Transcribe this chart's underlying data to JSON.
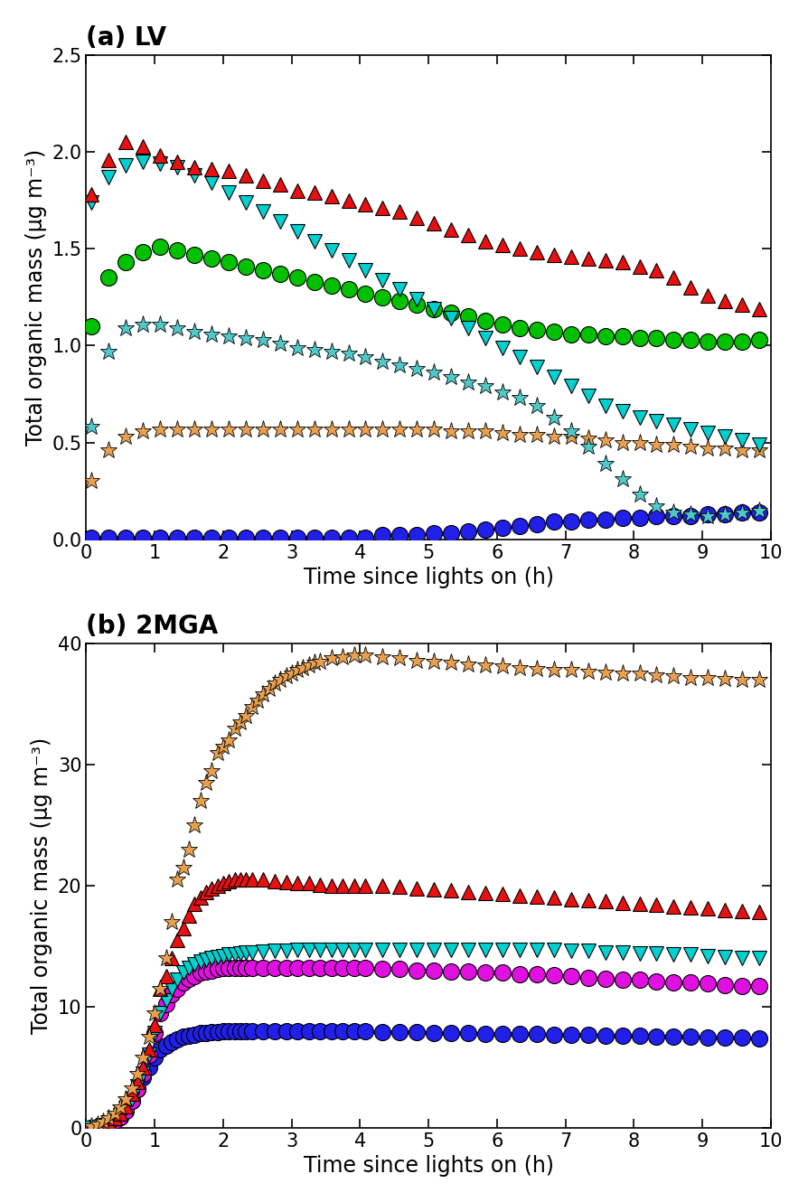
{
  "panel_a_title": "(a) LV",
  "panel_b_title": "(b) 2MGA",
  "xlabel": "Time since lights on (h)",
  "ylabel": "Total organic mass (μg m⁻³)",
  "panel_a_ylim": [
    0,
    2.5
  ],
  "panel_b_ylim": [
    0,
    40
  ],
  "xlim": [
    0,
    10
  ],
  "panel_a": {
    "red_triangles_up": {
      "x": [
        0.08,
        0.33,
        0.58,
        0.83,
        1.08,
        1.33,
        1.58,
        1.83,
        2.08,
        2.33,
        2.58,
        2.83,
        3.08,
        3.33,
        3.58,
        3.83,
        4.08,
        4.33,
        4.58,
        4.83,
        5.08,
        5.33,
        5.58,
        5.83,
        6.08,
        6.33,
        6.58,
        6.83,
        7.08,
        7.33,
        7.58,
        7.83,
        8.08,
        8.33,
        8.58,
        8.83,
        9.08,
        9.33,
        9.58,
        9.83
      ],
      "y": [
        1.78,
        1.96,
        2.05,
        2.03,
        1.98,
        1.95,
        1.92,
        1.91,
        1.9,
        1.88,
        1.85,
        1.83,
        1.8,
        1.79,
        1.77,
        1.75,
        1.73,
        1.71,
        1.69,
        1.66,
        1.63,
        1.6,
        1.57,
        1.54,
        1.52,
        1.5,
        1.48,
        1.47,
        1.46,
        1.45,
        1.44,
        1.43,
        1.41,
        1.39,
        1.35,
        1.3,
        1.26,
        1.23,
        1.21,
        1.19
      ],
      "color": "#e81010",
      "marker": "^",
      "ms": 11,
      "edge": "black",
      "ew": 0.8
    },
    "cyan_triangles_down": {
      "x": [
        0.08,
        0.33,
        0.58,
        0.83,
        1.08,
        1.33,
        1.58,
        1.83,
        2.08,
        2.33,
        2.58,
        2.83,
        3.08,
        3.33,
        3.58,
        3.83,
        4.08,
        4.33,
        4.58,
        4.83,
        5.08,
        5.33,
        5.58,
        5.83,
        6.08,
        6.33,
        6.58,
        6.83,
        7.08,
        7.33,
        7.58,
        7.83,
        8.08,
        8.33,
        8.58,
        8.83,
        9.08,
        9.33,
        9.58,
        9.83
      ],
      "y": [
        1.74,
        1.87,
        1.93,
        1.95,
        1.94,
        1.92,
        1.88,
        1.84,
        1.79,
        1.74,
        1.69,
        1.64,
        1.59,
        1.54,
        1.49,
        1.44,
        1.39,
        1.34,
        1.29,
        1.24,
        1.19,
        1.14,
        1.09,
        1.04,
        0.99,
        0.94,
        0.89,
        0.84,
        0.79,
        0.74,
        0.69,
        0.66,
        0.63,
        0.61,
        0.59,
        0.57,
        0.55,
        0.53,
        0.51,
        0.49
      ],
      "color": "#00d0d0",
      "marker": "v",
      "ms": 11,
      "edge": "black",
      "ew": 0.8
    },
    "green_circles": {
      "x": [
        0.08,
        0.33,
        0.58,
        0.83,
        1.08,
        1.33,
        1.58,
        1.83,
        2.08,
        2.33,
        2.58,
        2.83,
        3.08,
        3.33,
        3.58,
        3.83,
        4.08,
        4.33,
        4.58,
        4.83,
        5.08,
        5.33,
        5.58,
        5.83,
        6.08,
        6.33,
        6.58,
        6.83,
        7.08,
        7.33,
        7.58,
        7.83,
        8.08,
        8.33,
        8.58,
        8.83,
        9.08,
        9.33,
        9.58,
        9.83
      ],
      "y": [
        1.1,
        1.35,
        1.43,
        1.48,
        1.51,
        1.49,
        1.47,
        1.45,
        1.43,
        1.41,
        1.39,
        1.37,
        1.35,
        1.33,
        1.31,
        1.29,
        1.27,
        1.25,
        1.23,
        1.21,
        1.19,
        1.17,
        1.15,
        1.13,
        1.11,
        1.09,
        1.08,
        1.07,
        1.06,
        1.06,
        1.05,
        1.05,
        1.04,
        1.04,
        1.03,
        1.03,
        1.02,
        1.02,
        1.02,
        1.03
      ],
      "color": "#00c000",
      "marker": "o",
      "ms": 13,
      "edge": "black",
      "ew": 0.8
    },
    "teal_stars": {
      "x": [
        0.08,
        0.33,
        0.58,
        0.83,
        1.08,
        1.33,
        1.58,
        1.83,
        2.08,
        2.33,
        2.58,
        2.83,
        3.08,
        3.33,
        3.58,
        3.83,
        4.08,
        4.33,
        4.58,
        4.83,
        5.08,
        5.33,
        5.58,
        5.83,
        6.08,
        6.33,
        6.58,
        6.83,
        7.08,
        7.33,
        7.58,
        7.83,
        8.08,
        8.33,
        8.58,
        8.83,
        9.08,
        9.33,
        9.58,
        9.83
      ],
      "y": [
        0.58,
        0.97,
        1.09,
        1.11,
        1.11,
        1.09,
        1.07,
        1.06,
        1.05,
        1.04,
        1.03,
        1.01,
        0.99,
        0.98,
        0.97,
        0.96,
        0.94,
        0.92,
        0.9,
        0.88,
        0.86,
        0.84,
        0.81,
        0.79,
        0.76,
        0.73,
        0.69,
        0.63,
        0.56,
        0.48,
        0.39,
        0.31,
        0.23,
        0.17,
        0.14,
        0.13,
        0.12,
        0.13,
        0.14,
        0.15
      ],
      "color": "#50c8c8",
      "marker": "*",
      "ms": 14,
      "edge": "black",
      "ew": 0.6
    },
    "orange_stars": {
      "x": [
        0.08,
        0.33,
        0.58,
        0.83,
        1.08,
        1.33,
        1.58,
        1.83,
        2.08,
        2.33,
        2.58,
        2.83,
        3.08,
        3.33,
        3.58,
        3.83,
        4.08,
        4.33,
        4.58,
        4.83,
        5.08,
        5.33,
        5.58,
        5.83,
        6.08,
        6.33,
        6.58,
        6.83,
        7.08,
        7.33,
        7.58,
        7.83,
        8.08,
        8.33,
        8.58,
        8.83,
        9.08,
        9.33,
        9.58,
        9.83
      ],
      "y": [
        0.3,
        0.46,
        0.53,
        0.56,
        0.57,
        0.57,
        0.57,
        0.57,
        0.57,
        0.57,
        0.57,
        0.57,
        0.57,
        0.57,
        0.57,
        0.57,
        0.57,
        0.57,
        0.57,
        0.57,
        0.57,
        0.56,
        0.56,
        0.56,
        0.55,
        0.54,
        0.54,
        0.53,
        0.53,
        0.52,
        0.51,
        0.5,
        0.5,
        0.49,
        0.49,
        0.48,
        0.47,
        0.47,
        0.46,
        0.46
      ],
      "color": "#e8a050",
      "marker": "*",
      "ms": 14,
      "edge": "black",
      "ew": 0.6
    },
    "blue_circles": {
      "x": [
        0.08,
        0.33,
        0.58,
        0.83,
        1.08,
        1.33,
        1.58,
        1.83,
        2.08,
        2.33,
        2.58,
        2.83,
        3.08,
        3.33,
        3.58,
        3.83,
        4.08,
        4.33,
        4.58,
        4.83,
        5.08,
        5.33,
        5.58,
        5.83,
        6.08,
        6.33,
        6.58,
        6.83,
        7.08,
        7.33,
        7.58,
        7.83,
        8.08,
        8.33,
        8.58,
        8.83,
        9.08,
        9.33,
        9.58,
        9.83
      ],
      "y": [
        0.01,
        0.01,
        0.01,
        0.01,
        0.01,
        0.01,
        0.01,
        0.01,
        0.01,
        0.01,
        0.01,
        0.01,
        0.01,
        0.01,
        0.01,
        0.01,
        0.01,
        0.02,
        0.02,
        0.02,
        0.03,
        0.03,
        0.04,
        0.05,
        0.06,
        0.07,
        0.08,
        0.09,
        0.09,
        0.1,
        0.1,
        0.11,
        0.11,
        0.12,
        0.12,
        0.12,
        0.13,
        0.13,
        0.14,
        0.14
      ],
      "color": "#2020e8",
      "marker": "o",
      "ms": 13,
      "edge": "black",
      "ew": 0.8
    }
  },
  "panel_b": {
    "orange_stars": {
      "x": [
        0.08,
        0.17,
        0.25,
        0.33,
        0.42,
        0.5,
        0.58,
        0.67,
        0.75,
        0.83,
        0.92,
        1.0,
        1.08,
        1.17,
        1.25,
        1.33,
        1.42,
        1.5,
        1.58,
        1.67,
        1.75,
        1.83,
        1.92,
        2.0,
        2.08,
        2.17,
        2.25,
        2.33,
        2.42,
        2.5,
        2.58,
        2.67,
        2.75,
        2.83,
        2.92,
        3.0,
        3.08,
        3.17,
        3.25,
        3.33,
        3.42,
        3.58,
        3.75,
        3.92,
        4.08,
        4.33,
        4.58,
        4.83,
        5.08,
        5.33,
        5.58,
        5.83,
        6.08,
        6.33,
        6.58,
        6.83,
        7.08,
        7.33,
        7.58,
        7.83,
        8.08,
        8.33,
        8.58,
        8.83,
        9.08,
        9.33,
        9.58,
        9.83
      ],
      "y": [
        0.1,
        0.3,
        0.5,
        0.8,
        1.2,
        1.7,
        2.4,
        3.3,
        4.5,
        5.8,
        7.5,
        9.5,
        11.5,
        14.0,
        17.0,
        20.5,
        21.5,
        23.0,
        25.0,
        27.0,
        28.5,
        29.5,
        31.0,
        31.5,
        32.0,
        33.0,
        33.5,
        34.0,
        34.8,
        35.3,
        35.8,
        36.3,
        36.7,
        37.0,
        37.3,
        37.5,
        37.8,
        38.0,
        38.2,
        38.4,
        38.5,
        38.8,
        38.9,
        39.0,
        39.0,
        38.9,
        38.8,
        38.6,
        38.5,
        38.4,
        38.3,
        38.2,
        38.1,
        38.0,
        37.9,
        37.8,
        37.8,
        37.7,
        37.6,
        37.5,
        37.5,
        37.4,
        37.3,
        37.2,
        37.2,
        37.1,
        37.0,
        37.0
      ],
      "color": "#e8a050",
      "marker": "*",
      "ms": 14,
      "edge": "black",
      "ew": 0.6
    },
    "red_triangles_up": {
      "x": [
        0.08,
        0.17,
        0.25,
        0.33,
        0.42,
        0.5,
        0.58,
        0.67,
        0.75,
        0.83,
        0.92,
        1.0,
        1.08,
        1.17,
        1.25,
        1.33,
        1.42,
        1.5,
        1.58,
        1.67,
        1.75,
        1.83,
        1.92,
        2.0,
        2.08,
        2.17,
        2.25,
        2.33,
        2.42,
        2.58,
        2.75,
        2.92,
        3.08,
        3.25,
        3.42,
        3.58,
        3.75,
        3.92,
        4.08,
        4.33,
        4.58,
        4.83,
        5.08,
        5.33,
        5.58,
        5.83,
        6.08,
        6.33,
        6.58,
        6.83,
        7.08,
        7.33,
        7.58,
        7.83,
        8.08,
        8.33,
        8.58,
        8.83,
        9.08,
        9.33,
        9.58,
        9.83
      ],
      "y": [
        0.05,
        0.15,
        0.3,
        0.5,
        0.8,
        1.2,
        1.8,
        2.8,
        3.8,
        5.0,
        6.5,
        8.5,
        11.5,
        12.5,
        14.0,
        15.5,
        16.5,
        17.5,
        18.5,
        19.0,
        19.5,
        19.8,
        20.0,
        20.2,
        20.4,
        20.5,
        20.5,
        20.5,
        20.5,
        20.5,
        20.4,
        20.3,
        20.2,
        20.2,
        20.1,
        20.0,
        20.0,
        20.0,
        20.0,
        20.0,
        19.9,
        19.8,
        19.7,
        19.6,
        19.5,
        19.4,
        19.3,
        19.2,
        19.1,
        19.0,
        18.9,
        18.8,
        18.7,
        18.6,
        18.5,
        18.4,
        18.3,
        18.2,
        18.1,
        18.0,
        17.9,
        17.8
      ],
      "color": "#e81010",
      "marker": "^",
      "ms": 11,
      "edge": "black",
      "ew": 0.8
    },
    "cyan_triangles_down": {
      "x": [
        0.08,
        0.17,
        0.25,
        0.33,
        0.42,
        0.5,
        0.58,
        0.67,
        0.75,
        0.83,
        0.92,
        1.0,
        1.08,
        1.17,
        1.25,
        1.33,
        1.42,
        1.5,
        1.58,
        1.67,
        1.75,
        1.83,
        1.92,
        2.0,
        2.08,
        2.17,
        2.25,
        2.33,
        2.42,
        2.58,
        2.75,
        2.92,
        3.08,
        3.25,
        3.42,
        3.58,
        3.75,
        3.92,
        4.08,
        4.33,
        4.58,
        4.83,
        5.08,
        5.33,
        5.58,
        5.83,
        6.08,
        6.33,
        6.58,
        6.83,
        7.08,
        7.33,
        7.58,
        7.83,
        8.08,
        8.33,
        8.58,
        8.83,
        9.08,
        9.33,
        9.58,
        9.83
      ],
      "y": [
        0.02,
        0.08,
        0.18,
        0.35,
        0.6,
        1.0,
        1.6,
        2.4,
        3.4,
        4.5,
        6.0,
        7.8,
        9.5,
        10.5,
        11.5,
        12.2,
        12.8,
        13.2,
        13.5,
        13.7,
        13.9,
        14.0,
        14.1,
        14.2,
        14.3,
        14.35,
        14.4,
        14.45,
        14.5,
        14.55,
        14.6,
        14.65,
        14.7,
        14.7,
        14.7,
        14.7,
        14.7,
        14.7,
        14.7,
        14.7,
        14.7,
        14.7,
        14.7,
        14.7,
        14.7,
        14.7,
        14.7,
        14.7,
        14.7,
        14.7,
        14.6,
        14.6,
        14.5,
        14.5,
        14.4,
        14.4,
        14.3,
        14.3,
        14.2,
        14.1,
        14.0,
        14.0
      ],
      "color": "#00d0d0",
      "marker": "v",
      "ms": 11,
      "edge": "black",
      "ew": 0.8
    },
    "magenta_circles": {
      "x": [
        0.08,
        0.17,
        0.25,
        0.33,
        0.42,
        0.5,
        0.58,
        0.67,
        0.75,
        0.83,
        0.92,
        1.0,
        1.08,
        1.17,
        1.25,
        1.33,
        1.42,
        1.5,
        1.58,
        1.67,
        1.75,
        1.83,
        1.92,
        2.0,
        2.08,
        2.17,
        2.25,
        2.33,
        2.42,
        2.58,
        2.75,
        2.92,
        3.08,
        3.25,
        3.42,
        3.58,
        3.75,
        3.92,
        4.08,
        4.33,
        4.58,
        4.83,
        5.08,
        5.33,
        5.58,
        5.83,
        6.08,
        6.33,
        6.58,
        6.83,
        7.08,
        7.33,
        7.58,
        7.83,
        8.08,
        8.33,
        8.58,
        8.83,
        9.08,
        9.33,
        9.58,
        9.83
      ],
      "y": [
        0.02,
        0.06,
        0.15,
        0.3,
        0.55,
        0.9,
        1.4,
        2.2,
        3.2,
        4.5,
        6.0,
        7.8,
        9.5,
        10.2,
        11.0,
        11.5,
        12.0,
        12.3,
        12.5,
        12.8,
        12.9,
        13.0,
        13.1,
        13.2,
        13.2,
        13.2,
        13.2,
        13.2,
        13.2,
        13.2,
        13.2,
        13.2,
        13.2,
        13.2,
        13.2,
        13.2,
        13.2,
        13.2,
        13.2,
        13.1,
        13.1,
        13.0,
        13.0,
        12.9,
        12.9,
        12.8,
        12.8,
        12.7,
        12.7,
        12.6,
        12.5,
        12.4,
        12.3,
        12.2,
        12.2,
        12.1,
        12.0,
        12.0,
        11.9,
        11.8,
        11.7,
        11.7
      ],
      "color": "#e010e0",
      "marker": "o",
      "ms": 13,
      "edge": "black",
      "ew": 0.8
    },
    "blue_circles": {
      "x": [
        0.08,
        0.17,
        0.25,
        0.33,
        0.42,
        0.5,
        0.58,
        0.67,
        0.75,
        0.83,
        0.92,
        1.0,
        1.08,
        1.17,
        1.25,
        1.33,
        1.42,
        1.5,
        1.58,
        1.67,
        1.75,
        1.83,
        1.92,
        2.0,
        2.08,
        2.17,
        2.25,
        2.33,
        2.42,
        2.58,
        2.75,
        2.92,
        3.08,
        3.25,
        3.42,
        3.58,
        3.75,
        3.92,
        4.08,
        4.33,
        4.58,
        4.83,
        5.08,
        5.33,
        5.58,
        5.83,
        6.08,
        6.33,
        6.58,
        6.83,
        7.08,
        7.33,
        7.58,
        7.83,
        8.08,
        8.33,
        8.58,
        8.83,
        9.08,
        9.33,
        9.58,
        9.83
      ],
      "y": [
        0.02,
        0.06,
        0.15,
        0.3,
        0.55,
        0.9,
        1.4,
        2.2,
        3.2,
        4.2,
        5.0,
        5.8,
        6.5,
        6.8,
        7.1,
        7.3,
        7.5,
        7.6,
        7.7,
        7.8,
        7.85,
        7.9,
        7.92,
        7.95,
        7.97,
        7.98,
        7.99,
        8.0,
        8.0,
        8.0,
        8.0,
        8.0,
        8.0,
        8.0,
        8.0,
        7.98,
        7.97,
        7.96,
        7.95,
        7.93,
        7.9,
        7.87,
        7.84,
        7.82,
        7.8,
        7.78,
        7.76,
        7.74,
        7.72,
        7.7,
        7.67,
        7.65,
        7.62,
        7.6,
        7.57,
        7.55,
        7.52,
        7.5,
        7.47,
        7.44,
        7.42,
        7.4
      ],
      "color": "#2020e8",
      "marker": "o",
      "ms": 13,
      "edge": "black",
      "ew": 0.8
    }
  },
  "title_fontsize": 20,
  "label_fontsize": 17,
  "tick_fontsize": 15
}
